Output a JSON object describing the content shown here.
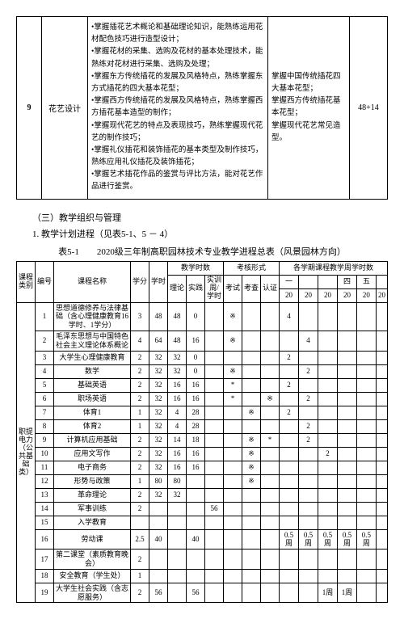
{
  "table1": {
    "row_num": "9",
    "course_name": "花艺设计",
    "bullets": [
      "•掌握插花艺术概论和基础理论知识，能熟练运用花材配色技巧进行造型设计；",
      "•掌握花材的采集、选购及花材的基本处理技术，能熟练对花材进行采集、选购及处理；",
      "•掌握东方传统插花的发展及风格特点，熟练掌握东方式插花的四大基本花型；",
      "•掌握西方传统插花的发展及风格特点，熟练掌握西方插花基本造型的制作；",
      "•掌握现代花艺的特点及表现技巧，熟练掌握现代花艺的制作技巧；",
      "•掌握礼仪插花和装饰插花的基本类型及制作技巧，熟练应用礼仪插花及装饰插花；",
      "•掌握艺术插花作品的鉴赏与评比方法，能对花艺作品进行鉴赏。"
    ],
    "goal": "掌握中国传统插花四大基本花型；\n掌握西方传统插花基本花型；\n掌握现代花艺常见造型。",
    "hours": "48+14"
  },
  "section": {
    "line1": "（三）教学组织与管理",
    "line2": "1. 教学计划进程（见表5-1、5 － 4）",
    "caption": "表5-1　　2020级三年制高职园林技术专业教学进程总表（风景园林方向）"
  },
  "table2": {
    "header": {
      "course_cat": "课程类别",
      "seq": "编号",
      "course_name": "课程名称",
      "credit": "学分",
      "hours": "学时",
      "teach_hours": "教学时数",
      "theory": "理论",
      "practice": "实践",
      "train_week": "实训周/学时",
      "exam_form": "考核形式",
      "exam_test": "考试",
      "exam_check": "考查",
      "cert": "认证",
      "sem_hours": "各学期课程教学周学时数",
      "sem_labels": [
        "一",
        "",
        "",
        "四",
        "五",
        ""
      ],
      "sem_weeks": [
        "20",
        "20",
        "20",
        "20",
        "20",
        "20"
      ]
    },
    "side_label": "职提电力（公共基础类）",
    "rows": [
      {
        "n": "1",
        "name": "思想道德修养与法律基础（含心理健康教育16学时、1学分）",
        "xf": "3",
        "xs": "48",
        "ll": "48",
        "sj": "0",
        "szz": "",
        "ks": "※",
        "kc": "",
        "rz": "",
        "s": [
          "4",
          "",
          "",
          "",
          "",
          ""
        ]
      },
      {
        "n": "2",
        "name": "毛泽东思想与中国特色社会主义理论体系概论",
        "xf": "4",
        "xs": "64",
        "ll": "48",
        "sj": "16",
        "szz": "",
        "ks": "※",
        "kc": "",
        "rz": "",
        "s": [
          "",
          "4",
          "",
          "",
          "",
          ""
        ]
      },
      {
        "n": "3",
        "name": "大学生心理健康教育",
        "xf": "2",
        "xs": "32",
        "ll": "32",
        "sj": "0",
        "szz": "",
        "ks": "",
        "kc": "",
        "rz": "",
        "s": [
          "2",
          "",
          "",
          "",
          "",
          ""
        ]
      },
      {
        "n": "4",
        "name": "数学",
        "xf": "2",
        "xs": "32",
        "ll": "32",
        "sj": "0",
        "szz": "",
        "ks": "※",
        "kc": "",
        "rz": "",
        "s": [
          "",
          "2",
          "",
          "",
          "",
          ""
        ]
      },
      {
        "n": "5",
        "name": "基础英语",
        "xf": "2",
        "xs": "32",
        "ll": "16",
        "sj": "16",
        "szz": "",
        "ks": "*",
        "kc": "",
        "rz": "",
        "s": [
          "2",
          "",
          "",
          "",
          "",
          ""
        ]
      },
      {
        "n": "6",
        "name": "职场英语",
        "xf": "2",
        "xs": "32",
        "ll": "16",
        "sj": "16",
        "szz": "",
        "ks": "*",
        "kc": "",
        "rz": "※",
        "s": [
          "",
          "2",
          "",
          "",
          "",
          ""
        ]
      },
      {
        "n": "7",
        "name": "体育1",
        "xf": "1",
        "xs": "32",
        "ll": "4",
        "sj": "28",
        "szz": "",
        "ks": "",
        "kc": "※",
        "rz": "",
        "s": [
          "2",
          "",
          "",
          "",
          "",
          ""
        ]
      },
      {
        "n": "8",
        "name": "体育2",
        "xf": "1",
        "xs": "32",
        "ll": "4",
        "sj": "28",
        "szz": "",
        "ks": "",
        "kc": "",
        "rz": "",
        "s": [
          "",
          "2",
          "",
          "",
          "",
          ""
        ]
      },
      {
        "n": "9",
        "name": "计算机应用基础",
        "xf": "2",
        "xs": "32",
        "ll": "14",
        "sj": "18",
        "szz": "",
        "ks": "",
        "kc": "※",
        "rz": "*",
        "s": [
          "",
          "2",
          "",
          "",
          "",
          ""
        ]
      },
      {
        "n": "10",
        "name": "应用文写作",
        "xf": "2",
        "xs": "32",
        "ll": "16",
        "sj": "16",
        "szz": "",
        "ks": "",
        "kc": "※",
        "rz": "",
        "s": [
          "",
          "",
          "2",
          "",
          "",
          ""
        ]
      },
      {
        "n": "11",
        "name": "电子商务",
        "xf": "2",
        "xs": "32",
        "ll": "16",
        "sj": "16",
        "szz": "",
        "ks": "",
        "kc": "※",
        "rz": "",
        "s": [
          "",
          "",
          "",
          "",
          "",
          ""
        ]
      },
      {
        "n": "12",
        "name": "形势与政策",
        "xf": "1",
        "xs": "80",
        "ll": "80",
        "sj": "",
        "szz": "",
        "ks": "",
        "kc": "※",
        "rz": "",
        "s": [
          "",
          "",
          "",
          "",
          "",
          ""
        ]
      },
      {
        "n": "13",
        "name": "革命理论",
        "xf": "2",
        "xs": "32",
        "ll": "32",
        "sj": "",
        "szz": "",
        "ks": "",
        "kc": "",
        "rz": "",
        "s": [
          "",
          "",
          "",
          "",
          "",
          ""
        ]
      },
      {
        "n": "14",
        "name": "军事训练",
        "xf": "2",
        "xs": "",
        "ll": "",
        "sj": "",
        "szz": "56",
        "ks": "",
        "kc": "",
        "rz": "",
        "s": [
          "",
          "",
          "",
          "",
          "",
          ""
        ]
      },
      {
        "n": "15",
        "name": "入学教育",
        "xf": "",
        "xs": "",
        "ll": "",
        "sj": "",
        "szz": "",
        "ks": "",
        "kc": "",
        "rz": "",
        "s": [
          "",
          "",
          "",
          "",
          "",
          ""
        ]
      },
      {
        "n": "16",
        "name": "劳动课",
        "xf": "2.5",
        "xs": "40",
        "ll": "",
        "sj": "40",
        "szz": "",
        "ks": "",
        "kc": "",
        "rz": "",
        "s": [
          "0.5周",
          "0.5周",
          "0.5周",
          "0.5周",
          "0.5周",
          ""
        ]
      },
      {
        "n": "17",
        "name": "第二课堂（素质教育晚会）",
        "xf": "2",
        "xs": "",
        "ll": "",
        "sj": "",
        "szz": "",
        "ks": "",
        "kc": "",
        "rz": "",
        "s": [
          "",
          "",
          "",
          "",
          "",
          ""
        ]
      },
      {
        "n": "18",
        "name": "安全教育（学生处）",
        "xf": "1",
        "xs": "",
        "ll": "",
        "sj": "",
        "szz": "",
        "ks": "",
        "kc": "",
        "rz": "",
        "s": [
          "",
          "",
          "",
          "",
          "",
          ""
        ]
      },
      {
        "n": "19",
        "name": "大学生社会实践（含志愿服务）",
        "xf": "2",
        "xs": "56",
        "ll": "",
        "sj": "56",
        "szz": "",
        "ks": "",
        "kc": "",
        "rz": "",
        "s": [
          "",
          "",
          "1周",
          "1周",
          "",
          ""
        ]
      }
    ]
  }
}
